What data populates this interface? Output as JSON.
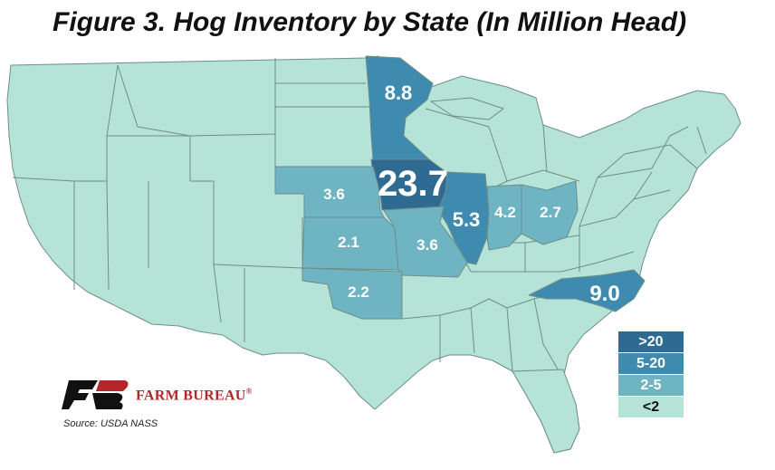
{
  "title": "Figure 3. Hog Inventory by State (In Million Head)",
  "source": "Source: USDA NASS",
  "logo_text": "FARM BUREAU",
  "logo_mark": "®",
  "colors": {
    "gt20": "#2f6a92",
    "r5_20": "#3f8bb0",
    "r2_5": "#6fb4c2",
    "lt2": "#b5e3d8",
    "border": "#6e8e88",
    "brand_red": "#b3262a"
  },
  "legend": [
    {
      "label": ">20",
      "class": "gt20"
    },
    {
      "label": "5-20",
      "class": "r5_20"
    },
    {
      "label": "2-5",
      "class": "r2_5"
    },
    {
      "label": "<2",
      "class": "lt2"
    }
  ],
  "states": [
    {
      "id": "iowa",
      "name": "Iowa",
      "value": "23.7",
      "class": "gt20"
    },
    {
      "id": "minnesota",
      "name": "Minnesota",
      "value": "8.8",
      "class": "r5_20"
    },
    {
      "id": "north-carolina",
      "name": "North Carolina",
      "value": "9.0",
      "class": "r5_20"
    },
    {
      "id": "illinois",
      "name": "Illinois",
      "value": "5.3",
      "class": "r5_20"
    },
    {
      "id": "nebraska",
      "name": "Nebraska",
      "value": "3.6",
      "class": "r2_5"
    },
    {
      "id": "missouri",
      "name": "Missouri",
      "value": "3.6",
      "class": "r2_5"
    },
    {
      "id": "indiana",
      "name": "Indiana",
      "value": "4.2",
      "class": "r2_5"
    },
    {
      "id": "ohio",
      "name": "Ohio",
      "value": "2.7",
      "class": "r2_5"
    },
    {
      "id": "kansas",
      "name": "Kansas",
      "value": "2.1",
      "class": "r2_5"
    },
    {
      "id": "oklahoma",
      "name": "Oklahoma",
      "value": "2.2",
      "class": "r2_5"
    }
  ]
}
